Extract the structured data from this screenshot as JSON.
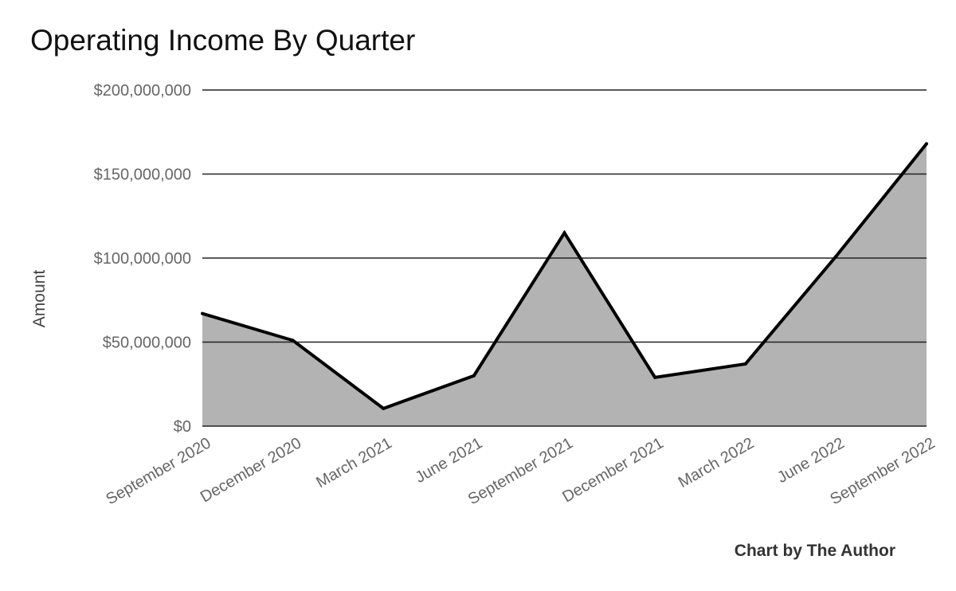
{
  "chart_data": {
    "type": "area",
    "title": "Operating Income By Quarter",
    "ylabel": "Amount",
    "xlabel": "",
    "categories": [
      "September 2020",
      "December 2020",
      "March 2021",
      "June 2021",
      "September 2021",
      "December 2021",
      "March 2022",
      "June 2022",
      "September 2022"
    ],
    "series": [
      {
        "values": [
          67000000,
          51000000,
          10500000,
          30000000,
          115000000,
          29000000,
          37000000,
          101000000,
          168000000
        ]
      }
    ],
    "ylim": [
      0,
      200000000
    ],
    "yticks": [
      0,
      50000000,
      100000000,
      150000000,
      200000000
    ],
    "ytick_labels": [
      "$0",
      "$50,000,000",
      "$100,000,000",
      "$150,000,000",
      "$200,000,000"
    ],
    "grid": true,
    "legend": "none",
    "fill_color": "#b3b3b3",
    "line_color": "#000000"
  },
  "credit": "Chart by The Author"
}
